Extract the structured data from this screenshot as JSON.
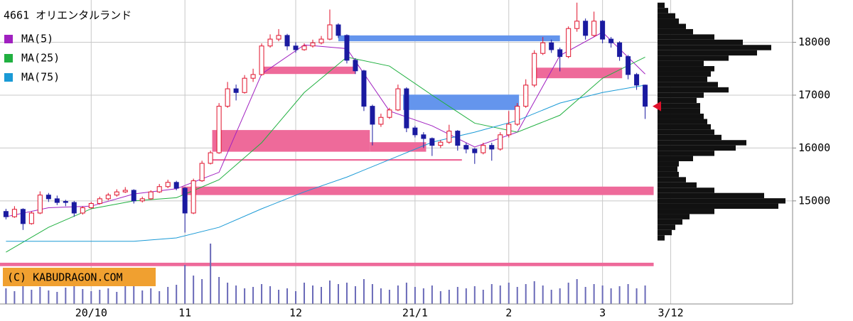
{
  "chart_data": {
    "type": "candlestick",
    "title": "4661 オリエンタルランド",
    "credit": "(C) KABUDRAGON.COM",
    "up_color": "#e0102a",
    "down_color": "#1a1aa0",
    "open": [
      14800,
      14700,
      14840,
      14570,
      14770,
      15110,
      15040,
      14990,
      14970,
      14770,
      14870,
      14950,
      15040,
      15110,
      15170,
      15200,
      15000,
      15040,
      15170,
      15270,
      15350,
      15240,
      14770,
      15380,
      15710,
      15910,
      16790,
      17120,
      17050,
      17320,
      17390,
      17930,
      18060,
      18130,
      17930,
      17860,
      17930,
      17990,
      18060,
      18330,
      18130,
      17660,
      17460,
      16790,
      16450,
      16580,
      16720,
      17120,
      16380,
      16250,
      16180,
      16050,
      16110,
      16320,
      16050,
      15980,
      15910,
      16050,
      15980,
      16250,
      16450,
      16790,
      17190,
      17790,
      17990,
      17860,
      17730,
      18260,
      18400,
      18130,
      18400,
      18060,
      17990,
      17730,
      17390,
      17190
    ],
    "high": [
      14850,
      14900,
      14860,
      14800,
      15180,
      15150,
      15100,
      15020,
      15000,
      14900,
      14980,
      15080,
      15150,
      15220,
      15260,
      15220,
      15080,
      15200,
      15320,
      15400,
      15380,
      15260,
      15420,
      15760,
      15950,
      16850,
      17250,
      17200,
      17380,
      17500,
      17980,
      18150,
      18250,
      18160,
      18000,
      17980,
      18050,
      18120,
      18620,
      18360,
      18150,
      17700,
      17480,
      16820,
      16650,
      16760,
      17200,
      17150,
      16420,
      16300,
      16200,
      16150,
      16440,
      16340,
      16100,
      16000,
      16100,
      16100,
      16300,
      16700,
      16850,
      17300,
      17850,
      18100,
      18050,
      17900,
      18300,
      18750,
      18450,
      18580,
      18420,
      18100,
      18020,
      17760,
      17420,
      17200
    ],
    "low": [
      14650,
      14680,
      14450,
      14550,
      14750,
      14980,
      14920,
      14900,
      14700,
      14740,
      14850,
      14930,
      15010,
      15080,
      15150,
      14950,
      14970,
      15020,
      15150,
      15240,
      15200,
      14400,
      14750,
      15360,
      15690,
      15890,
      16760,
      16900,
      17030,
      17250,
      17370,
      17900,
      18020,
      17850,
      17800,
      17840,
      17900,
      17960,
      18040,
      18080,
      17600,
      17400,
      16700,
      16050,
      16400,
      16550,
      16700,
      16300,
      16200,
      16000,
      15850,
      16000,
      16080,
      15950,
      15900,
      15700,
      15880,
      15760,
      15950,
      16200,
      16420,
      16760,
      17150,
      17760,
      17800,
      17450,
      17700,
      18200,
      18050,
      18100,
      17980,
      17900,
      17650,
      17300,
      17100,
      16550
    ],
    "close": [
      14700,
      14840,
      14570,
      14770,
      15110,
      15040,
      14970,
      14970,
      14770,
      14870,
      14950,
      15040,
      15110,
      15170,
      15200,
      15000,
      15040,
      15170,
      15270,
      15350,
      15240,
      14770,
      15380,
      15710,
      15910,
      16790,
      17120,
      17050,
      17320,
      17390,
      17930,
      18060,
      18130,
      17930,
      17860,
      17930,
      17990,
      18060,
      18330,
      18130,
      17660,
      17460,
      16790,
      16450,
      16580,
      16720,
      17120,
      16380,
      16250,
      16180,
      16050,
      16110,
      16320,
      16050,
      15980,
      15910,
      16050,
      15980,
      16250,
      16450,
      16790,
      17190,
      17790,
      17990,
      17860,
      17730,
      18260,
      18400,
      18130,
      18400,
      18060,
      17990,
      17730,
      17390,
      17190,
      16790
    ],
    "volume": [
      22,
      18,
      26,
      20,
      24,
      19,
      17,
      23,
      28,
      21,
      18,
      20,
      22,
      17,
      25,
      30,
      19,
      22,
      18,
      24,
      27,
      55,
      40,
      35,
      85,
      38,
      30,
      26,
      22,
      24,
      28,
      25,
      20,
      22,
      18,
      30,
      26,
      24,
      33,
      28,
      30,
      25,
      35,
      28,
      22,
      20,
      26,
      30,
      24,
      22,
      26,
      18,
      20,
      24,
      22,
      25,
      20,
      28,
      26,
      30,
      24,
      28,
      32,
      26,
      20,
      22,
      30,
      35,
      24,
      28,
      26,
      22,
      25,
      28,
      22,
      26
    ],
    "series": [
      {
        "name": "MA(5)",
        "color": "#a020c0",
        "x": [
          0,
          5,
          10,
          15,
          20,
          25,
          30,
          35,
          40,
          45,
          50,
          55,
          60,
          65,
          70,
          75
        ],
        "values": [
          14700,
          14870,
          14900,
          15130,
          15230,
          15540,
          17400,
          17950,
          17880,
          16700,
          16420,
          16020,
          16300,
          17750,
          18190,
          17400
        ]
      },
      {
        "name": "MA(25)",
        "color": "#20b040",
        "x": [
          0,
          5,
          10,
          15,
          20,
          25,
          30,
          35,
          40,
          45,
          50,
          55,
          60,
          65,
          70,
          75
        ],
        "values": [
          14030,
          14500,
          14850,
          15000,
          15060,
          15400,
          16100,
          17050,
          17720,
          17550,
          17000,
          16470,
          16300,
          16620,
          17320,
          17720
        ]
      },
      {
        "name": "MA(75)",
        "color": "#1a9ad6",
        "x": [
          0,
          5,
          10,
          15,
          20,
          25,
          30,
          35,
          40,
          45,
          50,
          55,
          60,
          65,
          70,
          75
        ],
        "values": [
          14235,
          14235,
          14235,
          14235,
          14300,
          14500,
          14850,
          15170,
          15450,
          15780,
          16110,
          16300,
          16520,
          16850,
          17050,
          17190
        ]
      }
    ],
    "zones": [
      {
        "start": 39,
        "end": 65,
        "low": 18020,
        "high": 18130,
        "color": "#6495ed"
      },
      {
        "start": 30,
        "end": 41,
        "low": 17400,
        "high": 17540,
        "color": "#ee6a9a"
      },
      {
        "start": 61.7,
        "end": 72.3,
        "low": 17320,
        "high": 17520,
        "color": "#ee6a9a"
      },
      {
        "start": 46.6,
        "end": 60.2,
        "low": 16720,
        "high": 17010,
        "color": "#6495ed"
      },
      {
        "start": 24.2,
        "end": 42.7,
        "low": 15930,
        "high": 16340,
        "color": "#ee6a9a"
      },
      {
        "start": 42.7,
        "end": 49.3,
        "low": 15930,
        "high": 16110,
        "color": "#ee6a9a"
      },
      {
        "start": 24.2,
        "end": 53.5,
        "low": 15760,
        "high": 15790,
        "color": "#ee6a9a"
      },
      {
        "start": 20.6,
        "end": 76,
        "low": 15110,
        "high": 15270,
        "color": "#ee6a9a"
      },
      {
        "start": -0.7,
        "end": 76,
        "low": 13765,
        "high": 13830,
        "color": "#ee6a9a"
      }
    ],
    "volume_profile": {
      "prices": [
        14300,
        14400,
        14500,
        14600,
        14700,
        14800,
        14900,
        15000,
        15100,
        15200,
        15300,
        15400,
        15500,
        15600,
        15700,
        15800,
        15900,
        16000,
        16100,
        16200,
        16300,
        16400,
        16500,
        16600,
        16700,
        16800,
        16900,
        17000,
        17100,
        17200,
        17300,
        17400,
        17500,
        17600,
        17700,
        17800,
        17900,
        18000,
        18100,
        18200,
        18300,
        18400,
        18500,
        18600,
        18700
      ],
      "values": [
        10,
        20,
        25,
        35,
        45,
        80,
        170,
        180,
        150,
        80,
        55,
        40,
        30,
        28,
        30,
        50,
        80,
        110,
        125,
        90,
        80,
        75,
        70,
        65,
        60,
        60,
        55,
        65,
        100,
        85,
        70,
        75,
        80,
        65,
        100,
        140,
        160,
        120,
        80,
        50,
        40,
        30,
        25,
        15,
        10
      ]
    },
    "xlim": [
      -0.7,
      92.3
    ],
    "ylim": [
      13050,
      18800
    ],
    "xticks": [
      {
        "value": 10,
        "label": "20/10"
      },
      {
        "value": 21,
        "label": "11"
      },
      {
        "value": 34,
        "label": "12"
      },
      {
        "value": 48,
        "label": "21/1"
      },
      {
        "value": 59,
        "label": "2"
      },
      {
        "value": 70,
        "label": "3"
      },
      {
        "value": 78,
        "label": "3/12"
      }
    ],
    "yticks": [
      15000,
      16000,
      17000,
      18000
    ],
    "grid": true
  }
}
